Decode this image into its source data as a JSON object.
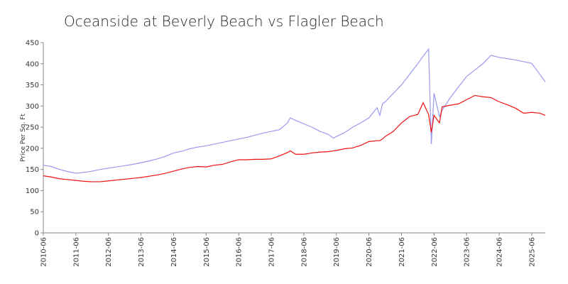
{
  "chart_data": {
    "type": "line",
    "title": "Oceanside at Beverly Beach vs Flagler Beach",
    "y_label": "Price Per Sq. Ft",
    "x": [
      "2010-06",
      "2010-09",
      "2010-12",
      "2011-03",
      "2011-06",
      "2011-09",
      "2011-12",
      "2012-03",
      "2012-06",
      "2012-09",
      "2012-12",
      "2013-03",
      "2013-06",
      "2013-09",
      "2013-12",
      "2014-03",
      "2014-06",
      "2014-09",
      "2014-12",
      "2015-03",
      "2015-06",
      "2015-09",
      "2015-12",
      "2016-03",
      "2016-06",
      "2016-09",
      "2016-12",
      "2017-03",
      "2017-06",
      "2017-09",
      "2017-12",
      "2018-01",
      "2018-03",
      "2018-06",
      "2018-09",
      "2018-12",
      "2019-03",
      "2019-05",
      "2019-06",
      "2019-09",
      "2019-12",
      "2020-03",
      "2020-06",
      "2020-09",
      "2020-10",
      "2020-11",
      "2020-12",
      "2021-03",
      "2021-06",
      "2021-09",
      "2021-12",
      "2022-02",
      "2022-04",
      "2022-05",
      "2022-06",
      "2022-08",
      "2022-09",
      "2022-12",
      "2023-03",
      "2023-06",
      "2023-09",
      "2023-12",
      "2024-03",
      "2024-06",
      "2024-09",
      "2024-12",
      "2025-03",
      "2025-06",
      "2025-09",
      "2025-11"
    ],
    "series": [
      {
        "color": "#9999ee",
        "values": [
          160,
          157,
          150,
          145,
          141,
          143,
          146,
          150,
          153,
          156,
          159,
          162,
          166,
          170,
          175,
          181,
          189,
          193,
          199,
          203,
          206,
          210,
          214,
          218,
          222,
          226,
          231,
          236,
          240,
          244,
          260,
          272,
          266,
          258,
          250,
          240,
          233,
          224,
          228,
          237,
          250,
          260,
          272,
          296,
          278,
          305,
          310,
          330,
          350,
          375,
          400,
          418,
          435,
          210,
          330,
          275,
          290,
          320,
          345,
          370,
          385,
          400,
          420,
          415,
          412,
          409,
          405,
          401,
          375,
          357
        ]
      },
      {
        "color": "#ee1111",
        "values": [
          135,
          132,
          128,
          126,
          124,
          122,
          121,
          121,
          123,
          125,
          127,
          129,
          131,
          134,
          137,
          141,
          146,
          151,
          155,
          157,
          156,
          160,
          162,
          168,
          173,
          173,
          174,
          174,
          175,
          182,
          190,
          194,
          186,
          186,
          189,
          191,
          192,
          194,
          195,
          199,
          201,
          207,
          216,
          218,
          218,
          222,
          228,
          240,
          260,
          275,
          280,
          308,
          280,
          238,
          278,
          260,
          298,
          302,
          305,
          315,
          325,
          322,
          320,
          310,
          303,
          295,
          283,
          285,
          283,
          278
        ]
      }
    ],
    "xlim": [
      "2010-06",
      "2025-11"
    ],
    "xticks": [
      "2010-06",
      "2011-06",
      "2012-06",
      "2013-06",
      "2014-06",
      "2015-06",
      "2016-06",
      "2017-06",
      "2018-06",
      "2019-06",
      "2020-06",
      "2021-06",
      "2022-06",
      "2023-06",
      "2024-06",
      "2025-06"
    ],
    "ylim": [
      0,
      450
    ],
    "yticks": [
      0,
      50,
      100,
      150,
      200,
      250,
      300,
      350,
      400,
      450
    ],
    "grid": false
  }
}
